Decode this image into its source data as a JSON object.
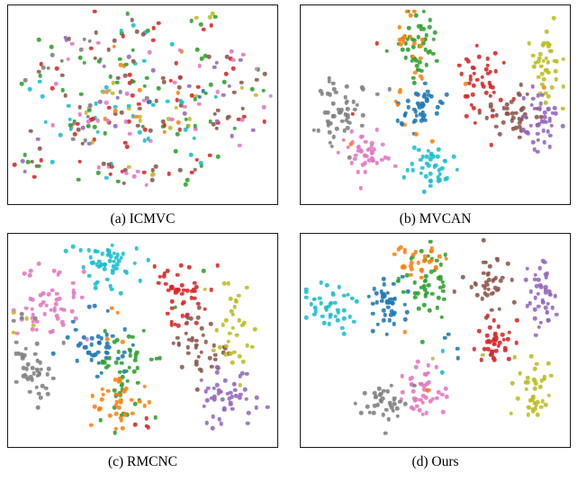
{
  "palette": {
    "blue": "#1f77b4",
    "orange": "#ff7f0e",
    "green": "#2ca02c",
    "red": "#d62728",
    "purple": "#9467bd",
    "brown": "#8c564b",
    "pink": "#e377c2",
    "gray": "#7f7f7f",
    "olive": "#bcbd22",
    "cyan": "#17becf"
  },
  "chart_data": [
    {
      "type": "scatter",
      "title": "(a) ICMVC",
      "xlabel": "",
      "ylabel": "",
      "axes_hidden": true,
      "seed": 101,
      "clusters": [
        {
          "colors": [
            "brown",
            "green",
            "red",
            "cyan"
          ],
          "cx": 0.45,
          "cy": 0.1,
          "rx": 0.06,
          "ry": 0.04,
          "n": 12
        },
        {
          "colors": [
            "red",
            "green",
            "olive"
          ],
          "cx": 0.75,
          "cy": 0.07,
          "rx": 0.04,
          "ry": 0.03,
          "n": 8
        },
        {
          "colors": [
            "pink",
            "brown",
            "green",
            "purple",
            "gray"
          ],
          "cx": 0.25,
          "cy": 0.22,
          "rx": 0.08,
          "ry": 0.05,
          "n": 18
        },
        {
          "colors": [
            "cyan",
            "red",
            "brown",
            "green",
            "orange",
            "pink"
          ],
          "cx": 0.55,
          "cy": 0.25,
          "rx": 0.1,
          "ry": 0.05,
          "n": 20
        },
        {
          "colors": [
            "green",
            "brown",
            "pink",
            "red",
            "purple"
          ],
          "cx": 0.8,
          "cy": 0.28,
          "rx": 0.07,
          "ry": 0.05,
          "n": 15
        },
        {
          "colors": [
            "red",
            "gray",
            "brown",
            "cyan",
            "green"
          ],
          "cx": 0.14,
          "cy": 0.4,
          "rx": 0.06,
          "ry": 0.06,
          "n": 15
        },
        {
          "colors": [
            "brown",
            "pink",
            "green",
            "cyan",
            "red",
            "olive",
            "purple",
            "gray"
          ],
          "cx": 0.35,
          "cy": 0.42,
          "rx": 0.1,
          "ry": 0.07,
          "n": 30
        },
        {
          "colors": [
            "green",
            "red",
            "brown",
            "pink",
            "cyan",
            "orange",
            "blue",
            "olive"
          ],
          "cx": 0.55,
          "cy": 0.45,
          "rx": 0.1,
          "ry": 0.07,
          "n": 30
        },
        {
          "colors": [
            "pink",
            "green",
            "brown",
            "red",
            "purple",
            "cyan"
          ],
          "cx": 0.75,
          "cy": 0.45,
          "rx": 0.07,
          "ry": 0.06,
          "n": 20
        },
        {
          "colors": [
            "olive",
            "brown",
            "green",
            "pink"
          ],
          "cx": 0.9,
          "cy": 0.42,
          "rx": 0.04,
          "ry": 0.05,
          "n": 10
        },
        {
          "colors": [
            "brown",
            "red",
            "green",
            "pink",
            "cyan",
            "gray"
          ],
          "cx": 0.25,
          "cy": 0.6,
          "rx": 0.08,
          "ry": 0.06,
          "n": 25
        },
        {
          "colors": [
            "green",
            "brown",
            "pink",
            "red",
            "olive",
            "cyan",
            "purple",
            "orange"
          ],
          "cx": 0.45,
          "cy": 0.62,
          "rx": 0.1,
          "ry": 0.06,
          "n": 30
        },
        {
          "colors": [
            "red",
            "pink",
            "brown",
            "green",
            "cyan",
            "olive"
          ],
          "cx": 0.65,
          "cy": 0.62,
          "rx": 0.08,
          "ry": 0.06,
          "n": 25
        },
        {
          "colors": [
            "purple",
            "brown",
            "green",
            "red",
            "pink"
          ],
          "cx": 0.85,
          "cy": 0.62,
          "rx": 0.06,
          "ry": 0.05,
          "n": 14
        },
        {
          "colors": [
            "red",
            "brown",
            "purple",
            "green"
          ],
          "cx": 0.08,
          "cy": 0.78,
          "rx": 0.04,
          "ry": 0.05,
          "n": 12
        },
        {
          "colors": [
            "brown",
            "green",
            "red",
            "pink",
            "cyan"
          ],
          "cx": 0.35,
          "cy": 0.82,
          "rx": 0.06,
          "ry": 0.05,
          "n": 16
        },
        {
          "colors": [
            "green",
            "brown",
            "red",
            "olive",
            "pink"
          ],
          "cx": 0.52,
          "cy": 0.86,
          "rx": 0.06,
          "ry": 0.04,
          "n": 14
        },
        {
          "colors": [
            "brown",
            "red",
            "green",
            "cyan"
          ],
          "cx": 0.7,
          "cy": 0.79,
          "rx": 0.05,
          "ry": 0.04,
          "n": 10
        }
      ]
    },
    {
      "type": "scatter",
      "title": "(b) MVCAN",
      "xlabel": "",
      "ylabel": "",
      "axes_hidden": true,
      "seed": 202,
      "clusters": [
        {
          "colors": [
            "gray"
          ],
          "cx": 0.14,
          "cy": 0.56,
          "rx": 0.045,
          "ry": 0.085,
          "n": 50
        },
        {
          "colors": [
            "pink"
          ],
          "cx": 0.23,
          "cy": 0.74,
          "rx": 0.045,
          "ry": 0.06,
          "n": 42
        },
        {
          "colors": [
            "green"
          ],
          "cx": 0.43,
          "cy": 0.2,
          "rx": 0.04,
          "ry": 0.09,
          "n": 48
        },
        {
          "colors": [
            "orange"
          ],
          "cx": 0.4,
          "cy": 0.26,
          "rx": 0.035,
          "ry": 0.11,
          "n": 22
        },
        {
          "colors": [
            "blue"
          ],
          "cx": 0.44,
          "cy": 0.52,
          "rx": 0.045,
          "ry": 0.06,
          "n": 42
        },
        {
          "colors": [
            "cyan"
          ],
          "cx": 0.48,
          "cy": 0.83,
          "rx": 0.045,
          "ry": 0.055,
          "n": 40
        },
        {
          "colors": [
            "red"
          ],
          "cx": 0.68,
          "cy": 0.4,
          "rx": 0.04,
          "ry": 0.09,
          "n": 46
        },
        {
          "colors": [
            "brown"
          ],
          "cx": 0.79,
          "cy": 0.55,
          "rx": 0.055,
          "ry": 0.055,
          "n": 42
        },
        {
          "colors": [
            "olive"
          ],
          "cx": 0.91,
          "cy": 0.3,
          "rx": 0.03,
          "ry": 0.08,
          "n": 40
        },
        {
          "colors": [
            "purple"
          ],
          "cx": 0.89,
          "cy": 0.6,
          "rx": 0.035,
          "ry": 0.075,
          "n": 42
        },
        {
          "colors": [
            "orange"
          ],
          "cx": 0.58,
          "cy": 0.55,
          "rx": 0.15,
          "ry": 0.18,
          "n": 7
        },
        {
          "colors": [
            "red",
            "gray"
          ],
          "cx": 0.3,
          "cy": 0.4,
          "rx": 0.12,
          "ry": 0.1,
          "n": 5
        }
      ]
    },
    {
      "type": "scatter",
      "title": "(c) RMCNC",
      "xlabel": "",
      "ylabel": "",
      "axes_hidden": true,
      "seed": 303,
      "clusters": [
        {
          "colors": [
            "cyan"
          ],
          "cx": 0.38,
          "cy": 0.14,
          "rx": 0.06,
          "ry": 0.06,
          "n": 52
        },
        {
          "colors": [
            "pink"
          ],
          "cx": 0.17,
          "cy": 0.33,
          "rx": 0.06,
          "ry": 0.08,
          "n": 52
        },
        {
          "colors": [
            "gray"
          ],
          "cx": 0.1,
          "cy": 0.63,
          "rx": 0.045,
          "ry": 0.08,
          "n": 42
        },
        {
          "colors": [
            "olive",
            "gray"
          ],
          "cx": 0.06,
          "cy": 0.42,
          "rx": 0.03,
          "ry": 0.04,
          "n": 8
        },
        {
          "colors": [
            "blue"
          ],
          "cx": 0.34,
          "cy": 0.52,
          "rx": 0.05,
          "ry": 0.07,
          "n": 46
        },
        {
          "colors": [
            "green"
          ],
          "cx": 0.44,
          "cy": 0.66,
          "rx": 0.05,
          "ry": 0.09,
          "n": 46
        },
        {
          "colors": [
            "orange"
          ],
          "cx": 0.4,
          "cy": 0.79,
          "rx": 0.055,
          "ry": 0.06,
          "n": 36
        },
        {
          "colors": [
            "red"
          ],
          "cx": 0.64,
          "cy": 0.28,
          "rx": 0.05,
          "ry": 0.08,
          "n": 48
        },
        {
          "colors": [
            "brown"
          ],
          "cx": 0.71,
          "cy": 0.52,
          "rx": 0.04,
          "ry": 0.07,
          "n": 40
        },
        {
          "colors": [
            "olive"
          ],
          "cx": 0.83,
          "cy": 0.42,
          "rx": 0.04,
          "ry": 0.12,
          "n": 34
        },
        {
          "colors": [
            "purple"
          ],
          "cx": 0.81,
          "cy": 0.77,
          "rx": 0.05,
          "ry": 0.07,
          "n": 46
        },
        {
          "colors": [
            "orange",
            "green"
          ],
          "cx": 0.5,
          "cy": 0.45,
          "rx": 0.1,
          "ry": 0.12,
          "n": 8
        },
        {
          "colors": [
            "red"
          ],
          "cx": 0.52,
          "cy": 0.9,
          "rx": 0.04,
          "ry": 0.03,
          "n": 4
        }
      ]
    },
    {
      "type": "scatter",
      "title": "(d) Ours",
      "xlabel": "",
      "ylabel": "",
      "axes_hidden": true,
      "seed": 404,
      "clusters": [
        {
          "colors": [
            "cyan"
          ],
          "cx": 0.11,
          "cy": 0.33,
          "rx": 0.045,
          "ry": 0.06,
          "n": 42
        },
        {
          "colors": [
            "blue"
          ],
          "cx": 0.33,
          "cy": 0.32,
          "rx": 0.045,
          "ry": 0.06,
          "n": 42
        },
        {
          "colors": [
            "green"
          ],
          "cx": 0.46,
          "cy": 0.24,
          "rx": 0.045,
          "ry": 0.09,
          "n": 46
        },
        {
          "colors": [
            "orange"
          ],
          "cx": 0.44,
          "cy": 0.13,
          "rx": 0.05,
          "ry": 0.05,
          "n": 30
        },
        {
          "colors": [
            "brown"
          ],
          "cx": 0.7,
          "cy": 0.23,
          "rx": 0.045,
          "ry": 0.07,
          "n": 40
        },
        {
          "colors": [
            "purple"
          ],
          "cx": 0.9,
          "cy": 0.28,
          "rx": 0.035,
          "ry": 0.08,
          "n": 42
        },
        {
          "colors": [
            "red"
          ],
          "cx": 0.72,
          "cy": 0.52,
          "rx": 0.035,
          "ry": 0.06,
          "n": 40
        },
        {
          "colors": [
            "pink"
          ],
          "cx": 0.46,
          "cy": 0.74,
          "rx": 0.05,
          "ry": 0.06,
          "n": 44
        },
        {
          "colors": [
            "gray"
          ],
          "cx": 0.31,
          "cy": 0.8,
          "rx": 0.045,
          "ry": 0.05,
          "n": 36
        },
        {
          "colors": [
            "olive"
          ],
          "cx": 0.86,
          "cy": 0.74,
          "rx": 0.035,
          "ry": 0.075,
          "n": 40
        },
        {
          "colors": [
            "blue"
          ],
          "cx": 0.55,
          "cy": 0.5,
          "rx": 0.03,
          "ry": 0.04,
          "n": 4
        },
        {
          "colors": [
            "olive",
            "orange",
            "cyan"
          ],
          "cx": 0.55,
          "cy": 0.6,
          "rx": 0.12,
          "ry": 0.1,
          "n": 6
        }
      ]
    }
  ]
}
